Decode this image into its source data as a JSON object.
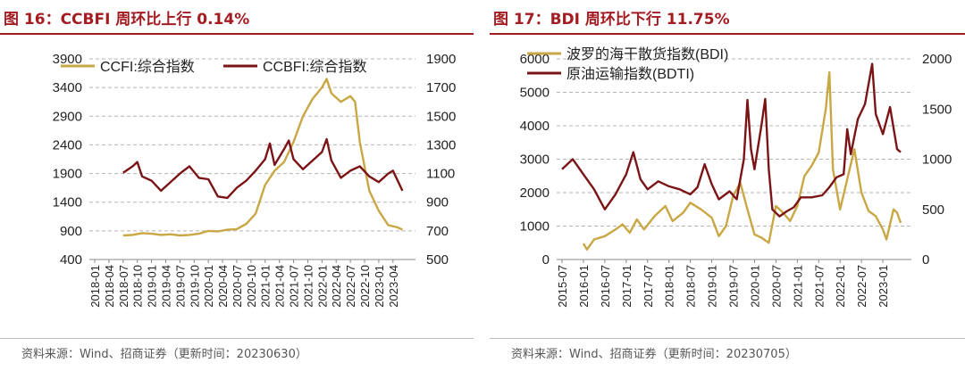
{
  "colors": {
    "gold": "#c9a744",
    "maroon": "#7b1416",
    "title_red": "#a21c22",
    "grid": "#b4b4b4"
  },
  "panels": [
    {
      "title": "图 16：CCBFI 周环比上行 0.14%",
      "source": "资料来源：Wind、招商证券（更新时间：20230630）"
    },
    {
      "title": "图 17：BDI 周环比下行 11.75%",
      "source": "资料来源：Wind、招商证券（更新时间：20230705）"
    }
  ],
  "chart_data": [
    {
      "type": "line",
      "x_tick_labels": [
        "2018-01",
        "2018-04",
        "2018-07",
        "2018-10",
        "2019-01",
        "2019-04",
        "2019-07",
        "2019-10",
        "2020-01",
        "2020-04",
        "2020-07",
        "2020-10",
        "2021-01",
        "2021-04",
        "2021-07",
        "2021-10",
        "2022-01",
        "2022-04",
        "2022-07",
        "2022-10",
        "2023-01",
        "2023-04"
      ],
      "y_left": {
        "min": 400,
        "max": 3900,
        "ticks": [
          "3900",
          "3400",
          "2900",
          "2400",
          "1900",
          "1400",
          "900",
          "400"
        ]
      },
      "y_right": {
        "min": 500,
        "max": 1900,
        "ticks": [
          "1900",
          "1700",
          "1500",
          "1300",
          "1100",
          "900",
          "700",
          "500"
        ]
      },
      "grid": "horizontal dashed",
      "legend": "top-left, inside plot",
      "series": [
        {
          "name": "CCFI:综合指数",
          "axis": "left",
          "color": "#c9a744",
          "points": [
            [
              "2018-07",
              820
            ],
            [
              "2018-09",
              830
            ],
            [
              "2018-11",
              860
            ],
            [
              "2019-01",
              850
            ],
            [
              "2019-03",
              830
            ],
            [
              "2019-05",
              840
            ],
            [
              "2019-07",
              820
            ],
            [
              "2019-09",
              830
            ],
            [
              "2019-11",
              850
            ],
            [
              "2020-01",
              900
            ],
            [
              "2020-03",
              890
            ],
            [
              "2020-05",
              920
            ],
            [
              "2020-07",
              930
            ],
            [
              "2020-09",
              1020
            ],
            [
              "2020-11",
              1200
            ],
            [
              "2021-01",
              1700
            ],
            [
              "2021-03",
              1950
            ],
            [
              "2021-05",
              2100
            ],
            [
              "2021-07",
              2450
            ],
            [
              "2021-09",
              2900
            ],
            [
              "2021-11",
              3200
            ],
            [
              "2022-01",
              3400
            ],
            [
              "2022-02",
              3550
            ],
            [
              "2022-03",
              3300
            ],
            [
              "2022-05",
              3150
            ],
            [
              "2022-07",
              3250
            ],
            [
              "2022-08",
              3150
            ],
            [
              "2022-09",
              2450
            ],
            [
              "2022-11",
              1600
            ],
            [
              "2023-01",
              1250
            ],
            [
              "2023-03",
              1000
            ],
            [
              "2023-05",
              960
            ],
            [
              "2023-06",
              920
            ]
          ]
        },
        {
          "name": "CCBFI:综合指数",
          "axis": "right",
          "color": "#7b1416",
          "points": [
            [
              "2018-07",
              1105
            ],
            [
              "2018-09",
              1150
            ],
            [
              "2018-10",
              1180
            ],
            [
              "2018-11",
              1080
            ],
            [
              "2019-01",
              1050
            ],
            [
              "2019-03",
              980
            ],
            [
              "2019-05",
              1040
            ],
            [
              "2019-07",
              1100
            ],
            [
              "2019-09",
              1150
            ],
            [
              "2019-11",
              1070
            ],
            [
              "2020-01",
              1060
            ],
            [
              "2020-03",
              940
            ],
            [
              "2020-05",
              930
            ],
            [
              "2020-07",
              1000
            ],
            [
              "2020-09",
              1050
            ],
            [
              "2020-11",
              1120
            ],
            [
              "2021-01",
              1200
            ],
            [
              "2021-02",
              1310
            ],
            [
              "2021-03",
              1160
            ],
            [
              "2021-05",
              1270
            ],
            [
              "2021-06",
              1330
            ],
            [
              "2021-07",
              1200
            ],
            [
              "2021-09",
              1130
            ],
            [
              "2021-11",
              1190
            ],
            [
              "2022-01",
              1250
            ],
            [
              "2022-02",
              1340
            ],
            [
              "2022-03",
              1190
            ],
            [
              "2022-05",
              1070
            ],
            [
              "2022-07",
              1120
            ],
            [
              "2022-09",
              1150
            ],
            [
              "2022-11",
              1080
            ],
            [
              "2023-01",
              1040
            ],
            [
              "2023-03",
              1100
            ],
            [
              "2023-04",
              1120
            ],
            [
              "2023-05",
              1050
            ],
            [
              "2023-06",
              980
            ]
          ]
        }
      ]
    },
    {
      "type": "line",
      "x_tick_labels": [
        "2015-07",
        "2016-01",
        "2016-07",
        "2017-01",
        "2017-07",
        "2018-01",
        "2018-07",
        "2019-01",
        "2019-07",
        "2020-01",
        "2020-07",
        "2021-01",
        "2021-07",
        "2022-01",
        "2022-07",
        "2023-01"
      ],
      "y_left": {
        "min": 0,
        "max": 6000,
        "ticks": [
          "6000",
          "5000",
          "4000",
          "3000",
          "2000",
          "1000",
          "0"
        ]
      },
      "y_right": {
        "min": 0,
        "max": 2000,
        "ticks": [
          "2000",
          "1500",
          "1000",
          "500",
          "0"
        ]
      },
      "grid": "horizontal dashed",
      "legend": "top-left, inside plot",
      "series": [
        {
          "name": "波罗的海干散货指数(BDI)",
          "axis": "left",
          "color": "#c9a744",
          "points": [
            [
              "2016-01",
              480
            ],
            [
              "2016-02",
              300
            ],
            [
              "2016-04",
              600
            ],
            [
              "2016-07",
              700
            ],
            [
              "2016-10",
              900
            ],
            [
              "2016-12",
              1050
            ],
            [
              "2017-02",
              800
            ],
            [
              "2017-04",
              1200
            ],
            [
              "2017-06",
              900
            ],
            [
              "2017-09",
              1300
            ],
            [
              "2017-12",
              1600
            ],
            [
              "2018-02",
              1150
            ],
            [
              "2018-05",
              1400
            ],
            [
              "2018-07",
              1700
            ],
            [
              "2018-10",
              1500
            ],
            [
              "2019-01",
              1250
            ],
            [
              "2019-03",
              700
            ],
            [
              "2019-05",
              1000
            ],
            [
              "2019-07",
              1900
            ],
            [
              "2019-09",
              2300
            ],
            [
              "2019-11",
              1500
            ],
            [
              "2020-01",
              750
            ],
            [
              "2020-03",
              650
            ],
            [
              "2020-05",
              500
            ],
            [
              "2020-07",
              1600
            ],
            [
              "2020-09",
              1400
            ],
            [
              "2020-11",
              1150
            ],
            [
              "2021-01",
              1600
            ],
            [
              "2021-03",
              2500
            ],
            [
              "2021-05",
              2800
            ],
            [
              "2021-07",
              3200
            ],
            [
              "2021-09",
              4500
            ],
            [
              "2021-10",
              5600
            ],
            [
              "2021-11",
              2700
            ],
            [
              "2022-01",
              1500
            ],
            [
              "2022-03",
              2400
            ],
            [
              "2022-05",
              3300
            ],
            [
              "2022-07",
              2000
            ],
            [
              "2022-09",
              1450
            ],
            [
              "2022-11",
              1300
            ],
            [
              "2023-01",
              900
            ],
            [
              "2023-02",
              600
            ],
            [
              "2023-04",
              1500
            ],
            [
              "2023-05",
              1400
            ],
            [
              "2023-06",
              1100
            ]
          ]
        },
        {
          "name": "原油运输指数(BDTI)",
          "axis": "right",
          "color": "#7b1416",
          "points": [
            [
              "2015-07",
              900
            ],
            [
              "2015-10",
              1000
            ],
            [
              "2016-01",
              850
            ],
            [
              "2016-04",
              700
            ],
            [
              "2016-07",
              500
            ],
            [
              "2016-10",
              650
            ],
            [
              "2017-01",
              850
            ],
            [
              "2017-03",
              1070
            ],
            [
              "2017-05",
              800
            ],
            [
              "2017-07",
              700
            ],
            [
              "2017-10",
              780
            ],
            [
              "2018-01",
              730
            ],
            [
              "2018-04",
              700
            ],
            [
              "2018-07",
              650
            ],
            [
              "2018-09",
              720
            ],
            [
              "2018-11",
              950
            ],
            [
              "2019-01",
              750
            ],
            [
              "2019-03",
              600
            ],
            [
              "2019-06",
              680
            ],
            [
              "2019-08",
              600
            ],
            [
              "2019-10",
              1000
            ],
            [
              "2019-11",
              1590
            ],
            [
              "2019-12",
              1100
            ],
            [
              "2020-01",
              900
            ],
            [
              "2020-03",
              1350
            ],
            [
              "2020-04",
              1600
            ],
            [
              "2020-05",
              900
            ],
            [
              "2020-06",
              500
            ],
            [
              "2020-08",
              430
            ],
            [
              "2020-10",
              480
            ],
            [
              "2020-12",
              520
            ],
            [
              "2021-02",
              620
            ],
            [
              "2021-05",
              620
            ],
            [
              "2021-08",
              640
            ],
            [
              "2021-10",
              720
            ],
            [
              "2021-12",
              820
            ],
            [
              "2022-02",
              850
            ],
            [
              "2022-03",
              1300
            ],
            [
              "2022-04",
              1050
            ],
            [
              "2022-06",
              1400
            ],
            [
              "2022-08",
              1550
            ],
            [
              "2022-10",
              1950
            ],
            [
              "2022-11",
              1450
            ],
            [
              "2023-01",
              1250
            ],
            [
              "2023-03",
              1520
            ],
            [
              "2023-05",
              1100
            ],
            [
              "2023-06",
              1070
            ]
          ]
        }
      ]
    }
  ]
}
